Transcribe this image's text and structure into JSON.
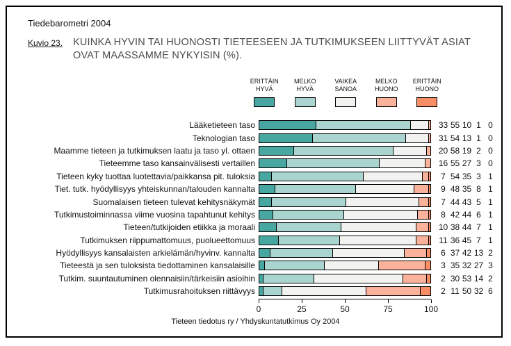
{
  "header": {
    "report_title": "Tiedebarometri 2004",
    "figure_label": "Kuvio 23.",
    "chart_title": "KUINKA HYVIN TAI HUONOSTI TIETEESEEN JA TUTKIMUKSEEN LIITTYVÄT ASIAT OVAT MAASSAMME NYKYISIN (%)."
  },
  "footer": {
    "source": "Tieteen tiedotus ry / Yhdyskuntatutkimus Oy 2004"
  },
  "colors": {
    "erittain_hyva": "#48A7A1",
    "melko_hyva": "#A9D4CF",
    "vaikea_sanoa": "#F2F2F0",
    "melko_huono": "#FBB29B",
    "erittain_huono": "#F98D66",
    "segment_border": "#000000"
  },
  "chart_data": {
    "type": "bar",
    "orientation": "horizontal-stacked",
    "title": "KUINKA HYVIN TAI HUONOSTI TIETEESEEN JA TUTKIMUKSEEN LIITTYVÄT ASIAT OVAT MAASSAMME NYKYISIN (%).",
    "xlabel": "",
    "ylabel": "",
    "xlim": [
      0,
      100
    ],
    "x_ticks": [
      0,
      25,
      50,
      75,
      100
    ],
    "grid": false,
    "legend_position": "top",
    "legend": [
      {
        "label": "ERITTÄIN\nHYVÄ",
        "color": "#48A7A1"
      },
      {
        "label": "MELKO\nHYVÄ",
        "color": "#A9D4CF"
      },
      {
        "label": "VAIKEA\nSANOA",
        "color": "#F2F2F0"
      },
      {
        "label": "MELKO\nHUONO",
        "color": "#FBB29B"
      },
      {
        "label": "ERITTÄIN\nHUONO",
        "color": "#F98D66"
      }
    ],
    "series_names": [
      "ERITTÄIN HYVÄ",
      "MELKO HYVÄ",
      "VAIKEA SANOA",
      "MELKO HUONO",
      "ERITTÄIN HUONO"
    ],
    "categories": [
      "Lääketieteen taso",
      "Teknologian taso",
      "Maamme tieteen ja tutkimuksen laatu ja taso yl. ottaen",
      "Tieteemme taso kansainvälisesti vertaillen",
      "Tieteen kyky tuottaa luotettavia/paikkansa pit. tuloksia",
      "Tiet. tutk. hyödyllisyys yhteiskunnan/talouden kannalta",
      "Suomalaisen tieteen tulevat kehitysnäkymät",
      "Tutkimustoiminnassa viime vuosina tapahtunut kehitys",
      "Tieteen/tutkijoiden etiikka ja moraali",
      "Tutkimuksen riippumattomuus, puolueettomuus",
      "Hyödyllisyys kansalaisten arkielämän/hyvinv. kannalta",
      "Tieteestä ja sen tuloksista tiedottaminen kansalaisille",
      "Tutkim. suuntautuminen olennaisiin/tärkeisiin asioihin",
      "Tutkimusrahoituksen riittävyys"
    ],
    "rows": [
      {
        "label": "Lääketieteen taso",
        "values": [
          33,
          55,
          10,
          1,
          0
        ]
      },
      {
        "label": "Teknologian taso",
        "values": [
          31,
          54,
          13,
          1,
          0
        ]
      },
      {
        "label": "Maamme tieteen ja tutkimuksen laatu ja taso yl. ottaen",
        "values": [
          20,
          58,
          19,
          2,
          0
        ]
      },
      {
        "label": "Tieteemme taso kansainvälisesti vertaillen",
        "values": [
          16,
          55,
          27,
          3,
          0
        ]
      },
      {
        "label": "Tieteen kyky tuottaa luotettavia/paikkansa pit. tuloksia",
        "values": [
          7,
          54,
          35,
          3,
          1
        ]
      },
      {
        "label": "Tiet. tutk. hyödyllisyys yhteiskunnan/talouden kannalta",
        "values": [
          9,
          48,
          35,
          8,
          1
        ]
      },
      {
        "label": "Suomalaisen tieteen tulevat kehitysnäkymät",
        "values": [
          7,
          44,
          43,
          5,
          1
        ]
      },
      {
        "label": "Tutkimustoiminnassa viime vuosina tapahtunut kehitys",
        "values": [
          8,
          42,
          44,
          6,
          1
        ]
      },
      {
        "label": "Tieteen/tutkijoiden etiikka ja moraali",
        "values": [
          10,
          38,
          44,
          7,
          1
        ]
      },
      {
        "label": "Tutkimuksen riippumattomuus, puolueettomuus",
        "values": [
          11,
          36,
          45,
          7,
          1
        ]
      },
      {
        "label": "Hyödyllisyys kansalaisten arkielämän/hyvinv. kannalta",
        "values": [
          6,
          37,
          42,
          13,
          2
        ]
      },
      {
        "label": "Tieteestä ja sen tuloksista tiedottaminen kansalaisille",
        "values": [
          3,
          35,
          32,
          27,
          3
        ]
      },
      {
        "label": "Tutkim. suuntautuminen olennaisiin/tärkeisiin asioihin",
        "values": [
          2,
          30,
          53,
          14,
          2
        ]
      },
      {
        "label": "Tutkimusrahoituksen riittävyys",
        "values": [
          2,
          11,
          50,
          32,
          6
        ]
      }
    ]
  }
}
